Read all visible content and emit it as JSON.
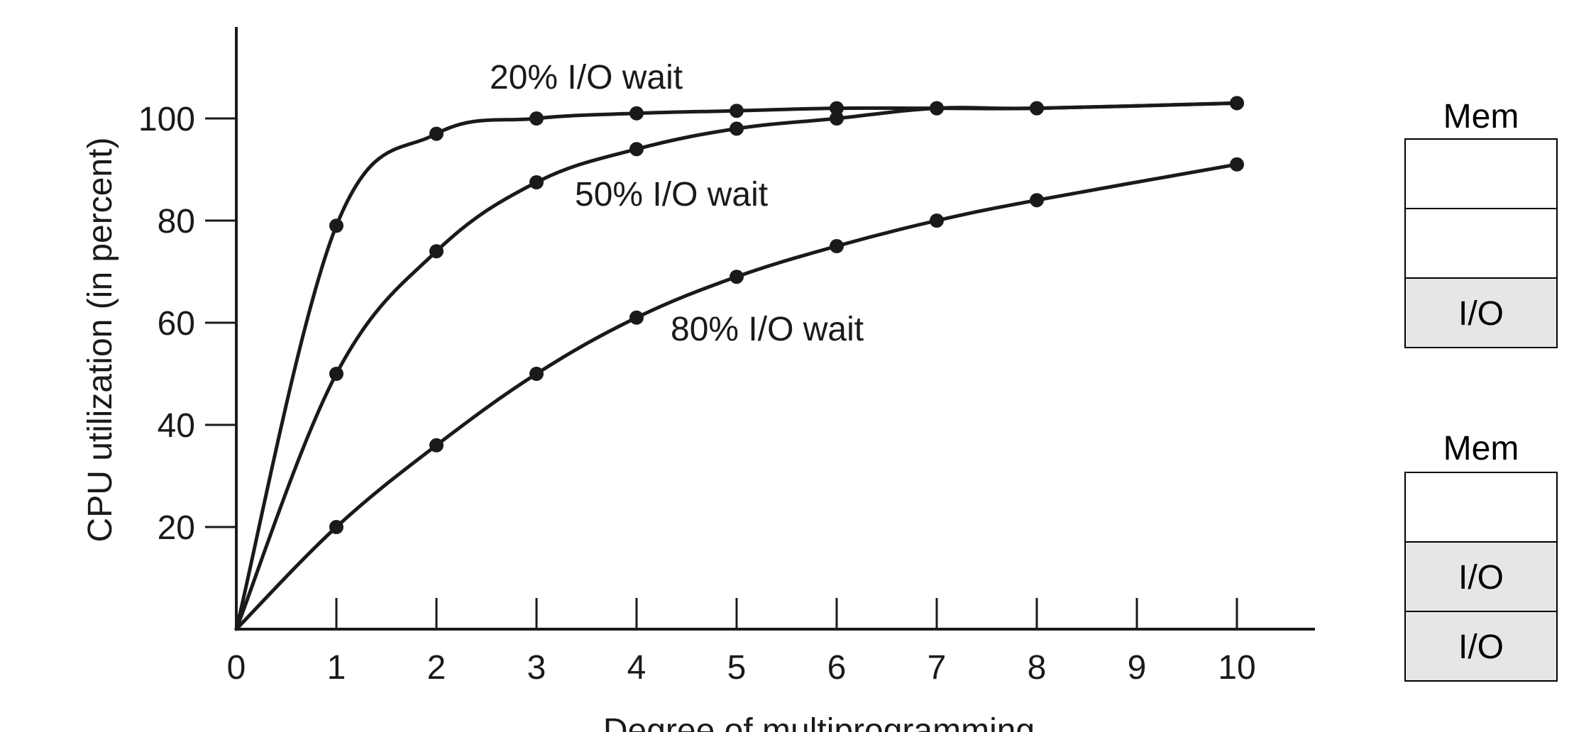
{
  "chart_data": {
    "type": "line",
    "title": "",
    "xlabel": "Degree of multiprogramming",
    "ylabel": "CPU utilization (in percent)",
    "xlim": [
      0,
      10.8
    ],
    "ylim": [
      0,
      120
    ],
    "x_ticks": [
      0,
      1,
      2,
      3,
      4,
      5,
      6,
      7,
      8,
      9,
      10
    ],
    "y_ticks": [
      20,
      40,
      60,
      80,
      100
    ],
    "x_tick_labels": [
      "0",
      "1",
      "2",
      "3",
      "4",
      "5",
      "6",
      "7",
      "8",
      "9",
      "10"
    ],
    "y_tick_labels": [
      "20",
      "40",
      "60",
      "80",
      "100"
    ],
    "grid": false,
    "series": [
      {
        "name": "20% I/O wait",
        "x": [
          0,
          1,
          2,
          3,
          4,
          5,
          6,
          7,
          8,
          10
        ],
        "values": [
          0,
          79,
          97,
          100,
          101,
          101.5,
          102,
          102,
          102,
          103
        ]
      },
      {
        "name": "50% I/O wait",
        "x": [
          0,
          1,
          2,
          3,
          4,
          5,
          6,
          7,
          8,
          10
        ],
        "values": [
          0,
          50,
          74,
          87.5,
          94,
          98,
          100,
          102,
          102,
          103
        ]
      },
      {
        "name": "80% I/O wait",
        "x": [
          0,
          1,
          2,
          3,
          4,
          5,
          6,
          7,
          8,
          10
        ],
        "values": [
          0,
          20,
          36,
          50,
          61,
          69,
          75,
          80,
          84,
          91
        ]
      }
    ]
  },
  "mem_panels": [
    {
      "title": "Mem",
      "slots": [
        {
          "label": "",
          "io": false
        },
        {
          "label": "",
          "io": false
        },
        {
          "label": "I/O",
          "io": true
        }
      ]
    },
    {
      "title": "Mem",
      "slots": [
        {
          "label": "",
          "io": false
        },
        {
          "label": "I/O",
          "io": true
        },
        {
          "label": "I/O",
          "io": true
        }
      ]
    }
  ],
  "colors": {
    "ink": "#1a1a1a",
    "io_fill": "#e6e6e6"
  }
}
